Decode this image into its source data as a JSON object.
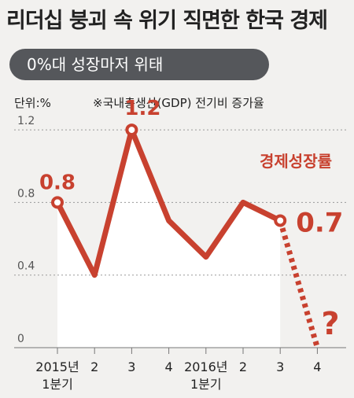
{
  "header": {
    "title": "리더십 붕괴 속 위기 직면한 한국 경제",
    "subtitle": "0%대 성장마저 위태",
    "unit": "단위:%",
    "note": "※국내총생산(GDP) 전기비 증가율"
  },
  "chart_data": {
    "type": "line",
    "title": "",
    "xlabel": "",
    "ylabel": "",
    "series_label": "경제성장률",
    "categories": [
      "2015년\n1분기",
      "2",
      "3",
      "4",
      "2016년\n1분기",
      "2",
      "3",
      "4"
    ],
    "values": [
      0.8,
      0.4,
      1.2,
      0.7,
      0.5,
      0.8,
      0.7,
      0.0
    ],
    "projected_from_index": 6,
    "ylim": [
      0,
      1.3
    ],
    "yticks": [
      0,
      0.4,
      0.8,
      1.2
    ],
    "ytick_labels": [
      "0",
      "0.4",
      "0.8",
      "1.2"
    ],
    "data_labels": [
      {
        "index": 0,
        "text": "0.8"
      },
      {
        "index": 2,
        "text": "1.2"
      },
      {
        "index": 6,
        "text": "0.7"
      }
    ],
    "annotation": "?",
    "line_color": "#c8412f",
    "area_color": "#ffffff",
    "grid": true
  }
}
